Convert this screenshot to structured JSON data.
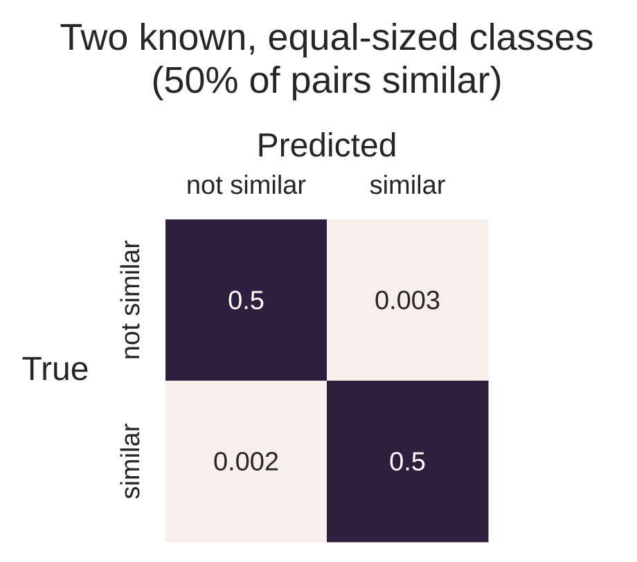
{
  "chart_data": {
    "type": "heatmap",
    "title": "Two known, equal-sized classes\n(50% of pairs similar)",
    "title_lines": [
      "Two known, equal-sized classes",
      "(50% of pairs similar)"
    ],
    "xlabel": "Predicted",
    "ylabel": "True",
    "x_categories": [
      "not similar",
      "similar"
    ],
    "y_categories": [
      "not similar",
      "similar"
    ],
    "values": [
      [
        0.5,
        0.003
      ],
      [
        0.002,
        0.5
      ]
    ],
    "cell_labels": [
      [
        "0.5",
        "0.003"
      ],
      [
        "0.002",
        "0.5"
      ]
    ],
    "x_axis_position": "top",
    "colorbar": false,
    "grid": false,
    "colors": {
      "high": "#2f1f3e",
      "low": "#f8efea",
      "text_on_high": "#ffffff",
      "text_on_low": "#262626"
    }
  }
}
